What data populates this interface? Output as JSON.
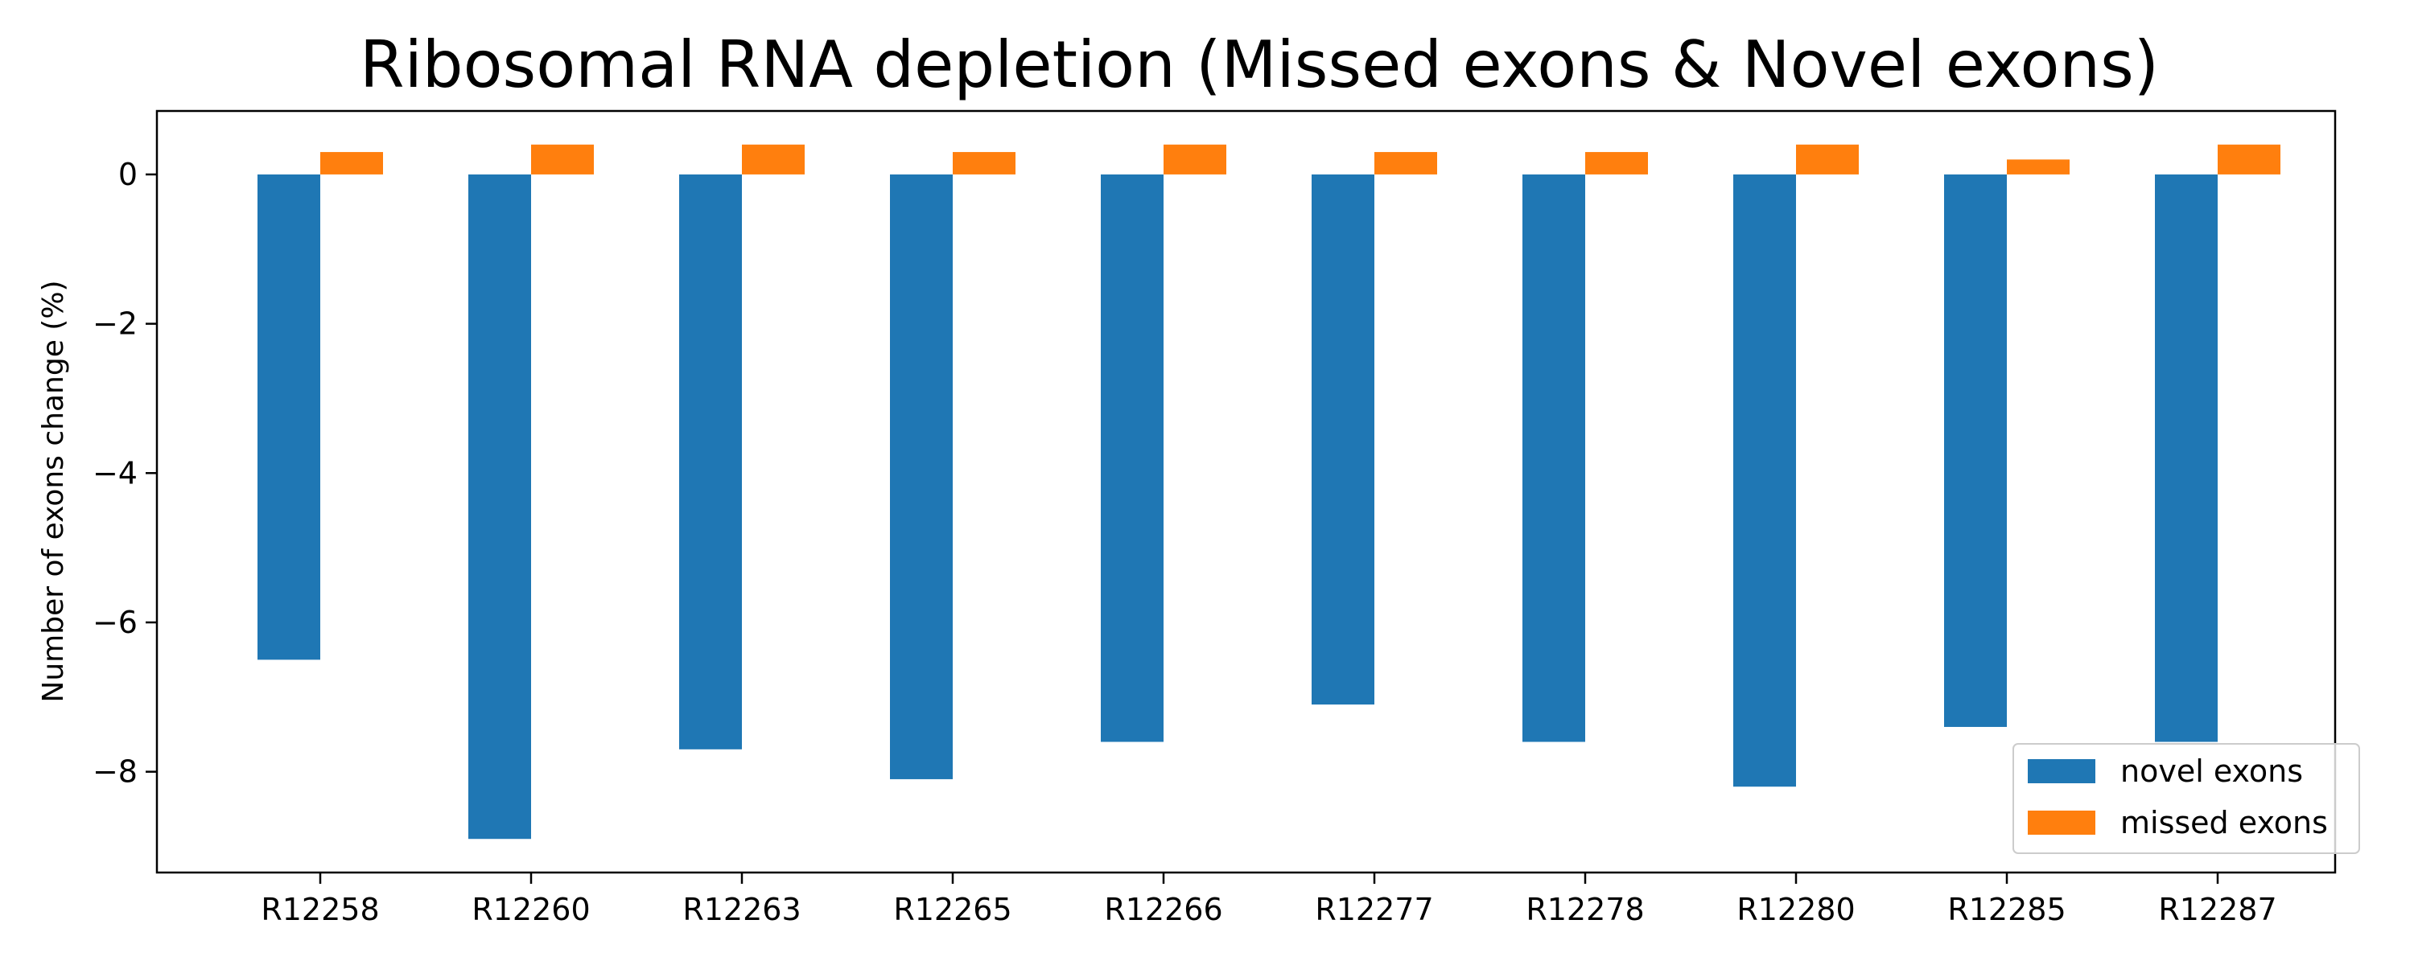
{
  "chart_data": {
    "type": "bar",
    "title": "Ribosomal RNA depletion (Missed exons & Novel exons)",
    "xlabel": "",
    "ylabel": "Number of exons change (%)",
    "categories": [
      "R12258",
      "R12260",
      "R12263",
      "R12265",
      "R12266",
      "R12277",
      "R12278",
      "R12280",
      "R12285",
      "R12287"
    ],
    "series": [
      {
        "name": "novel exons",
        "color": "#1f77b4",
        "values": [
          -6.5,
          -8.9,
          -7.7,
          -8.1,
          -7.6,
          -7.1,
          -7.6,
          -8.2,
          -7.4,
          -7.6
        ]
      },
      {
        "name": "missed exons",
        "color": "#ff7f0e",
        "values": [
          0.3,
          0.4,
          0.4,
          0.3,
          0.4,
          0.3,
          0.3,
          0.4,
          0.2,
          0.4
        ]
      }
    ],
    "ylim": [
      -9.35,
      0.85
    ],
    "yticks": [
      0,
      -2,
      -4,
      -6,
      -8
    ],
    "ytick_labels": [
      "0",
      "−2",
      "−4",
      "−6",
      "−8"
    ],
    "grid": false,
    "legend_position": "lower-right"
  }
}
